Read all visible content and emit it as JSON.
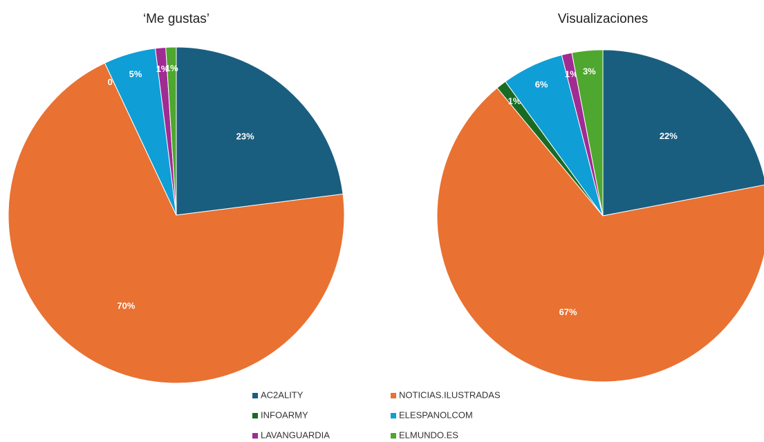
{
  "chart_data": [
    {
      "type": "pie",
      "title": "‘Me gustas’",
      "categories": [
        "AC2ALITY",
        "NOTICIAS.ILUSTRADAS",
        "INFOARMY",
        "ELESPANOLCOM",
        "LAVANGUARDIA",
        "ELMUNDO.ES"
      ],
      "values": [
        23,
        70,
        0,
        5,
        1,
        1
      ],
      "value_labels": [
        "23%",
        "70%",
        "0%",
        "5%",
        "1%",
        "1%"
      ],
      "colors": [
        "#1a5e7f",
        "#e97132",
        "#196b24",
        "#0f9ed5",
        "#a02b93",
        "#4ea72e"
      ]
    },
    {
      "type": "pie",
      "title": "Visualizaciones",
      "categories": [
        "AC2ALITY",
        "NOTICIAS.ILUSTRADAS",
        "INFOARMY",
        "ELESPANOLCOM",
        "LAVANGUARDIA",
        "ELMUNDO.ES"
      ],
      "values": [
        22,
        67,
        1,
        6,
        1,
        3
      ],
      "value_labels": [
        "22%",
        "67%",
        "1%",
        "6%",
        "1%",
        "3%"
      ],
      "colors": [
        "#1a5e7f",
        "#e97132",
        "#196b24",
        "#0f9ed5",
        "#a02b93",
        "#4ea72e"
      ]
    }
  ]
}
